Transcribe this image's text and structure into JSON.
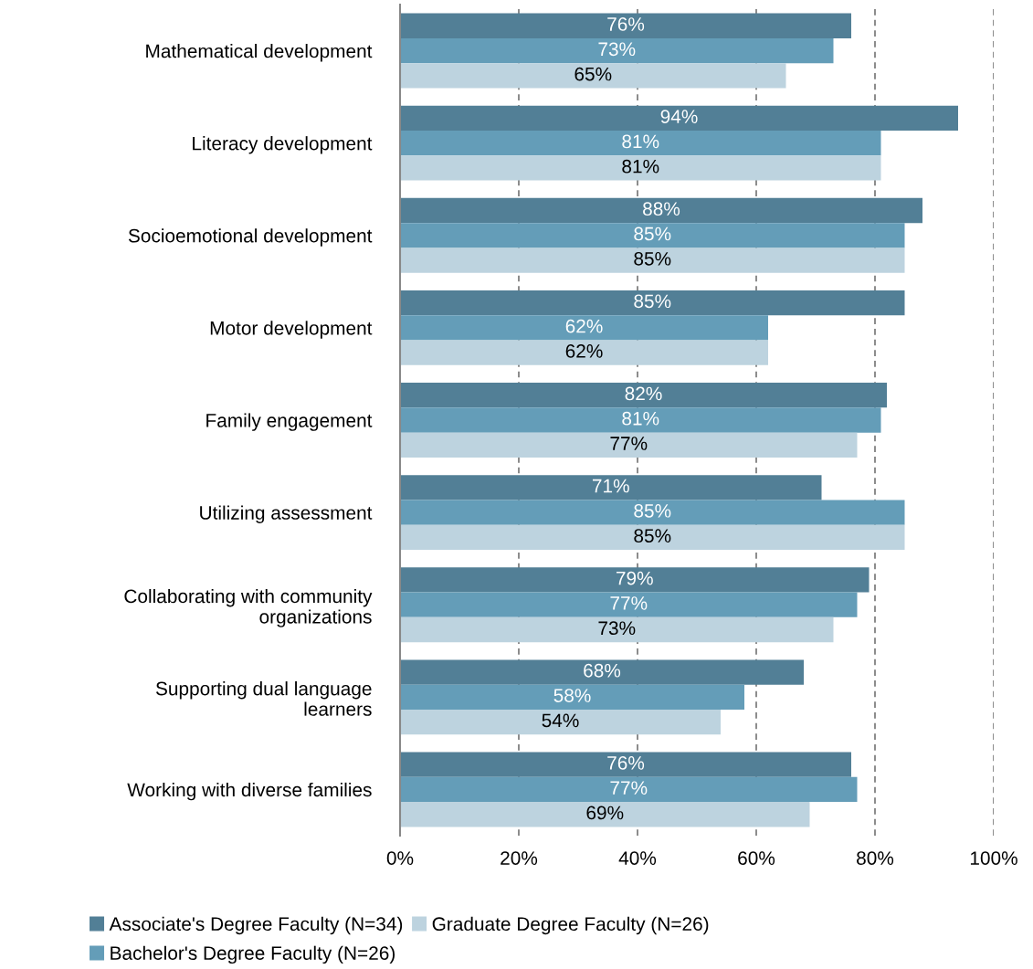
{
  "chart_data": {
    "type": "bar",
    "orientation": "horizontal",
    "categories": [
      "Mathematical development",
      "Literacy development",
      "Socioemotional development",
      "Motor development",
      "Family engagement",
      "Utilizing assessment",
      "Collaborating with community organizations",
      "Supporting dual language learners",
      "Working with diverse families"
    ],
    "series": [
      {
        "name": "Associate's Degree Faculty (N=34)",
        "color": "#527f96",
        "values": [
          76,
          94,
          88,
          85,
          82,
          71,
          79,
          68,
          76
        ],
        "value_labels": [
          "76%",
          "94%",
          "88%",
          "85%",
          "82%",
          "71%",
          "79%",
          "68%",
          "76%"
        ]
      },
      {
        "name": "Bachelor's Degree Faculty (N=26)",
        "color": "#649db8",
        "values": [
          73,
          81,
          85,
          62,
          81,
          85,
          77,
          58,
          77
        ],
        "value_labels": [
          "73%",
          "81%",
          "85%",
          "62%",
          "81%",
          "85%",
          "77%",
          "58%",
          "77%"
        ]
      },
      {
        "name": "Graduate Degree Faculty (N=26)",
        "color": "#bdd3df",
        "values": [
          65,
          81,
          85,
          62,
          77,
          85,
          73,
          54,
          69
        ],
        "value_labels": [
          "65%",
          "81%",
          "85%",
          "62%",
          "77%",
          "85%",
          "73%",
          "54%",
          "69%"
        ]
      }
    ],
    "xlim": [
      0,
      100
    ],
    "xticks": [
      {
        "value": 0,
        "label": "0%"
      },
      {
        "value": 20,
        "label": "20%"
      },
      {
        "value": 40,
        "label": "40%"
      },
      {
        "value": 60,
        "label": "60%"
      },
      {
        "value": 80,
        "label": "80%"
      },
      {
        "value": 100,
        "label": "100%"
      }
    ],
    "grid": "x",
    "legend": "bottom"
  }
}
